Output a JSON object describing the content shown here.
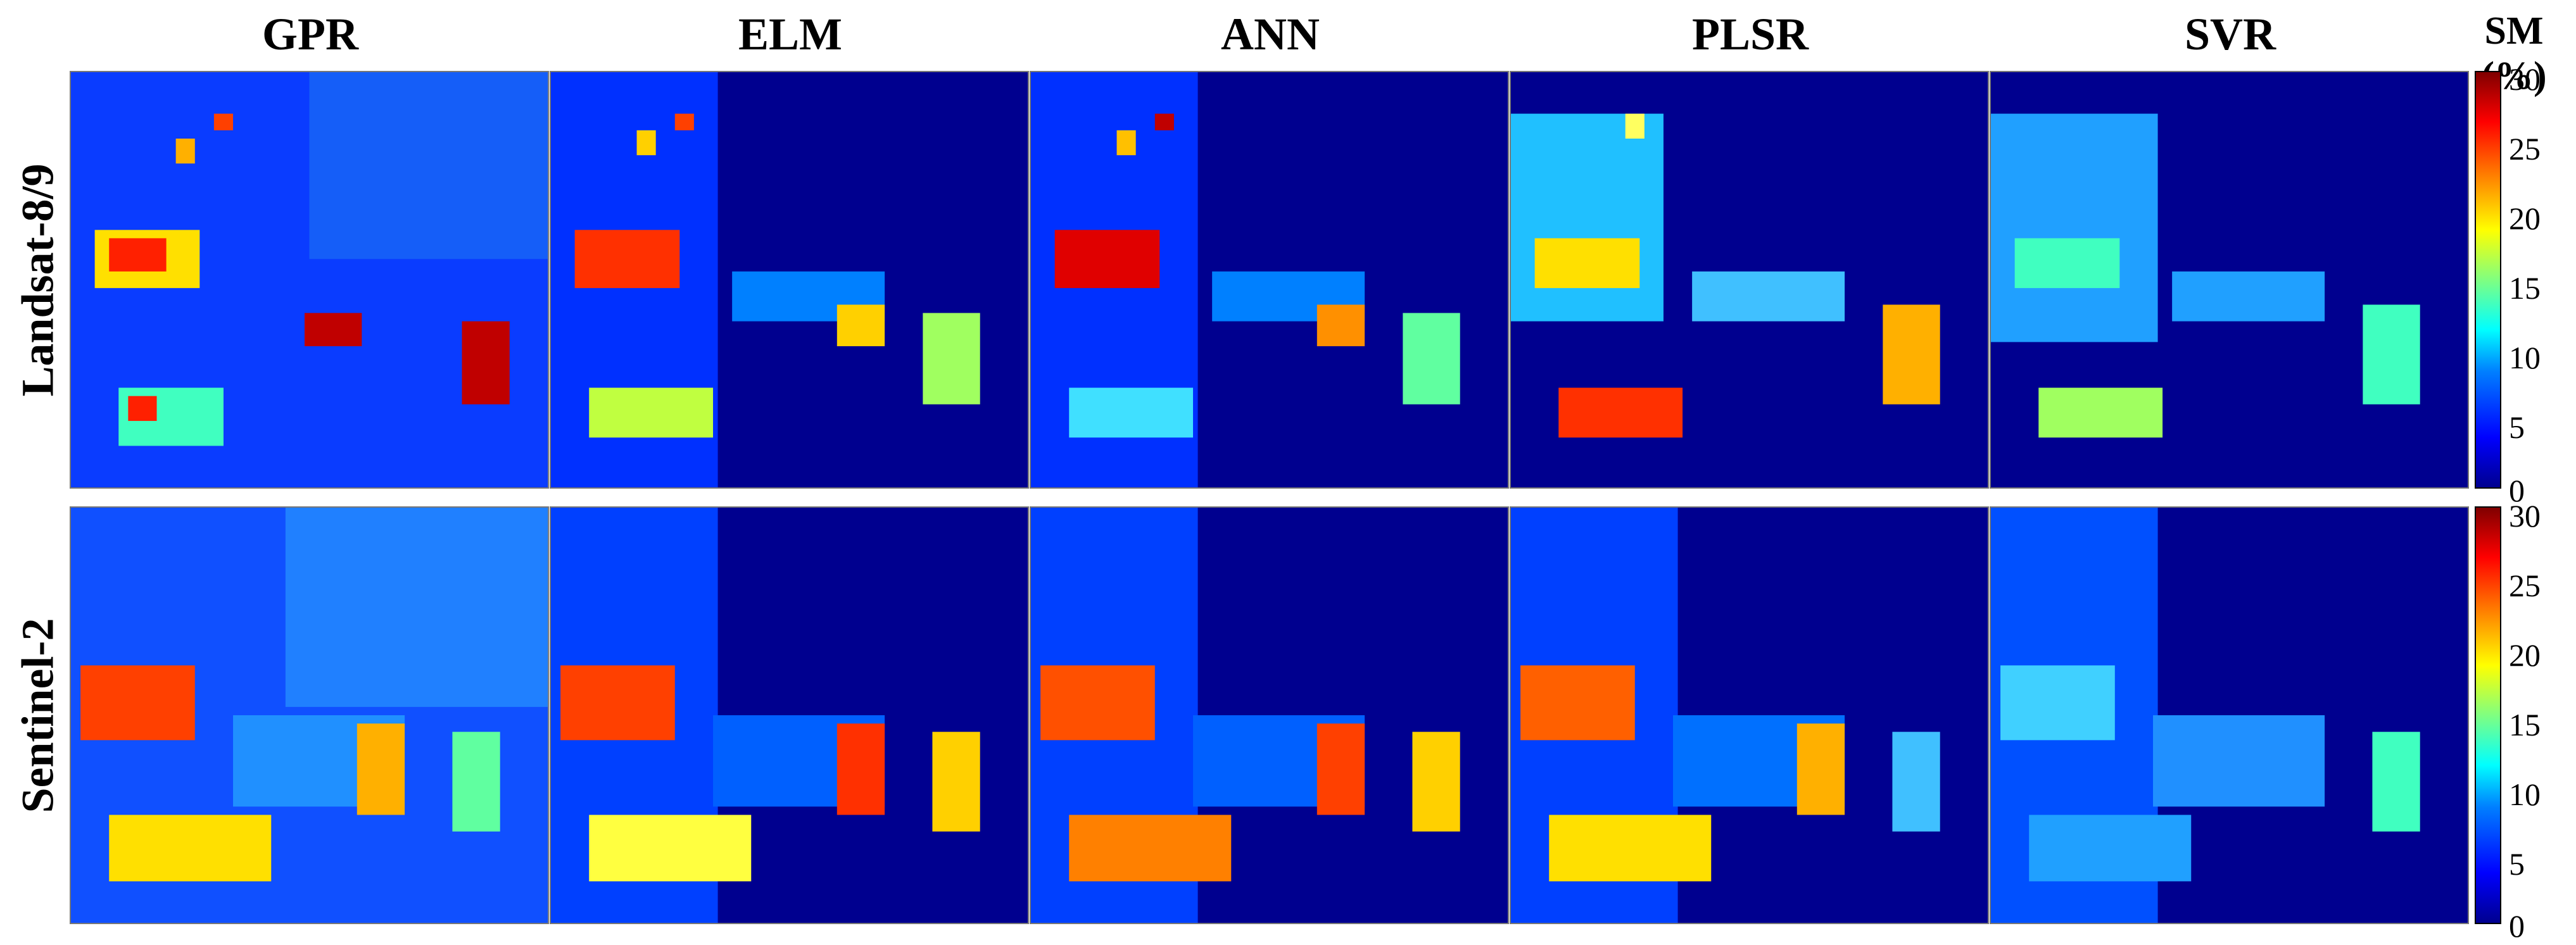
{
  "columns": [
    "GPR",
    "ELM",
    "ANN",
    "PLSR",
    "SVR"
  ],
  "rows": [
    "Landsat-8/9",
    "Sentinel-2"
  ],
  "colorbar": {
    "title": "SM (%)",
    "ticks": [
      "30",
      "25",
      "20",
      "15",
      "10",
      "5",
      "0"
    ],
    "colormap": "jet",
    "range": [
      0,
      30
    ]
  },
  "colors": {
    "low": "#00008f",
    "mid_low": "#0080ff",
    "mid": "#00ffff",
    "mid_high": "#ffff00",
    "high": "#ff0000",
    "max": "#800000"
  }
}
